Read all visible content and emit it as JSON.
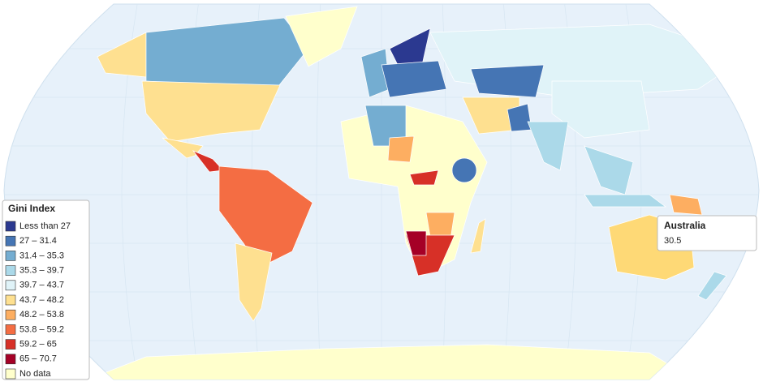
{
  "legend": {
    "title": "Gini Index",
    "items": [
      {
        "label": "Less than 27",
        "color": "#2b3990"
      },
      {
        "label": "27 – 31.4",
        "color": "#4575b4"
      },
      {
        "label": "31.4 – 35.3",
        "color": "#74add1"
      },
      {
        "label": "35.3 – 39.7",
        "color": "#abd9e9"
      },
      {
        "label": "39.7 – 43.7",
        "color": "#e0f3f8"
      },
      {
        "label": "43.7 – 48.2",
        "color": "#fee090"
      },
      {
        "label": "48.2 – 53.8",
        "color": "#fdae61"
      },
      {
        "label": "53.8 – 59.2",
        "color": "#f46d43"
      },
      {
        "label": "59.2 – 65",
        "color": "#d73027"
      },
      {
        "label": "65 – 70.7",
        "color": "#a50026"
      },
      {
        "label": "No data",
        "color": "#ffffcc"
      }
    ]
  },
  "tooltip": {
    "country": "Australia",
    "value": "30.5"
  }
}
